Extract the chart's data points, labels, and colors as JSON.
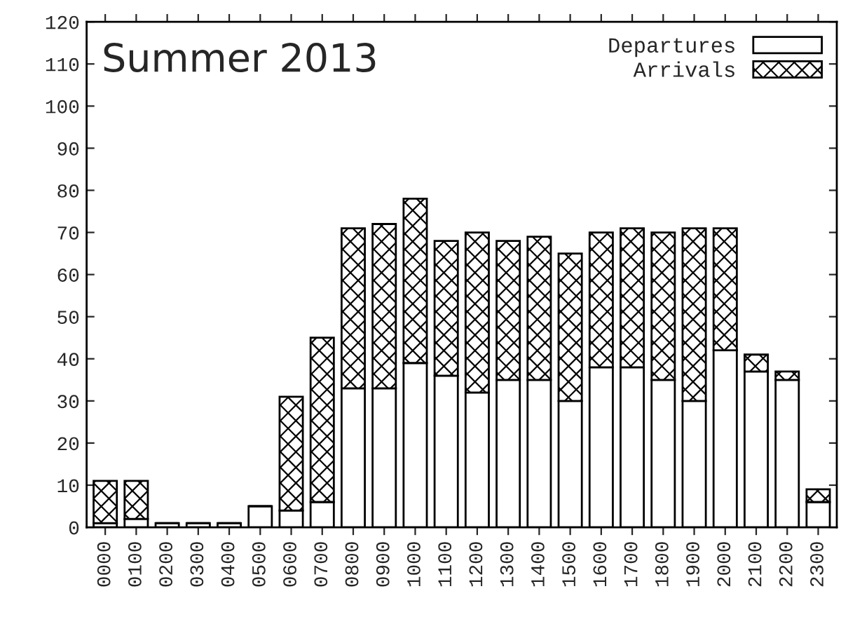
{
  "chart_data": {
    "type": "bar",
    "title": "Summer 2013",
    "stacked": true,
    "categories": [
      "0000",
      "0100",
      "0200",
      "0300",
      "0400",
      "0500",
      "0600",
      "0700",
      "0800",
      "0900",
      "1000",
      "1100",
      "1200",
      "1300",
      "1400",
      "1500",
      "1600",
      "1700",
      "1800",
      "1900",
      "2000",
      "2100",
      "2200",
      "2300"
    ],
    "series": [
      {
        "name": "Departures",
        "color": "#ffffff",
        "values": [
          1,
          2,
          1,
          1,
          1,
          5,
          4,
          6,
          33,
          33,
          39,
          36,
          32,
          35,
          35,
          30,
          38,
          38,
          35,
          30,
          42,
          37,
          35,
          6
        ]
      },
      {
        "name": "Arrivals",
        "color": "#000000",
        "values": [
          10,
          9,
          0,
          0,
          0,
          0,
          27,
          39,
          38,
          39,
          39,
          32,
          38,
          33,
          34,
          35,
          32,
          33,
          35,
          41,
          29,
          4,
          2,
          3
        ]
      }
    ],
    "ylim": [
      0,
      120
    ],
    "yticks": [
      0,
      10,
      20,
      30,
      40,
      50,
      60,
      70,
      80,
      90,
      100,
      110,
      120
    ],
    "grid": false,
    "legend": "top right"
  }
}
